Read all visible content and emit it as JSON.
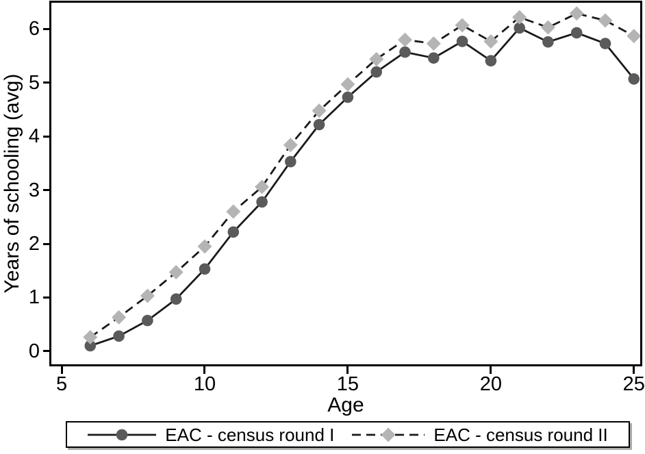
{
  "chart_data": {
    "type": "line",
    "title": "",
    "xlabel": "Age",
    "ylabel": "Years of schooling (avg)",
    "x": [
      6,
      7,
      8,
      9,
      10,
      11,
      12,
      13,
      14,
      15,
      16,
      17,
      18,
      19,
      20,
      21,
      22,
      23,
      24,
      25
    ],
    "series": [
      {
        "name": "EAC - census round I",
        "marker": "circle",
        "marker_color": "#5a5a5a",
        "line_color": "#1a1a1a",
        "line_style": "solid",
        "values": [
          0.1,
          0.28,
          0.57,
          0.97,
          1.53,
          2.22,
          2.78,
          3.53,
          4.22,
          4.73,
          5.2,
          5.57,
          5.46,
          5.77,
          5.41,
          6.02,
          5.76,
          5.93,
          5.73,
          5.07
        ]
      },
      {
        "name": "EAC - census round II",
        "marker": "diamond",
        "marker_color": "#b4b4b4",
        "line_color": "#1a1a1a",
        "line_style": "dashed",
        "values": [
          0.26,
          0.63,
          1.03,
          1.47,
          1.95,
          2.6,
          3.06,
          3.84,
          4.48,
          4.97,
          5.44,
          5.8,
          5.73,
          6.07,
          5.77,
          6.22,
          6.03,
          6.29,
          6.16,
          5.87
        ]
      }
    ],
    "x_ticks": [
      5,
      10,
      15,
      20,
      25
    ],
    "y_ticks": [
      0,
      1,
      2,
      3,
      4,
      5,
      6
    ],
    "xlim": [
      4.64,
      25.22
    ],
    "ylim": [
      -0.245,
      6.49
    ],
    "grid": false,
    "legend_position": "bottom-outside",
    "dash_pattern": "13 8",
    "axis_color": "#000000",
    "background_color": "#ffffff"
  }
}
